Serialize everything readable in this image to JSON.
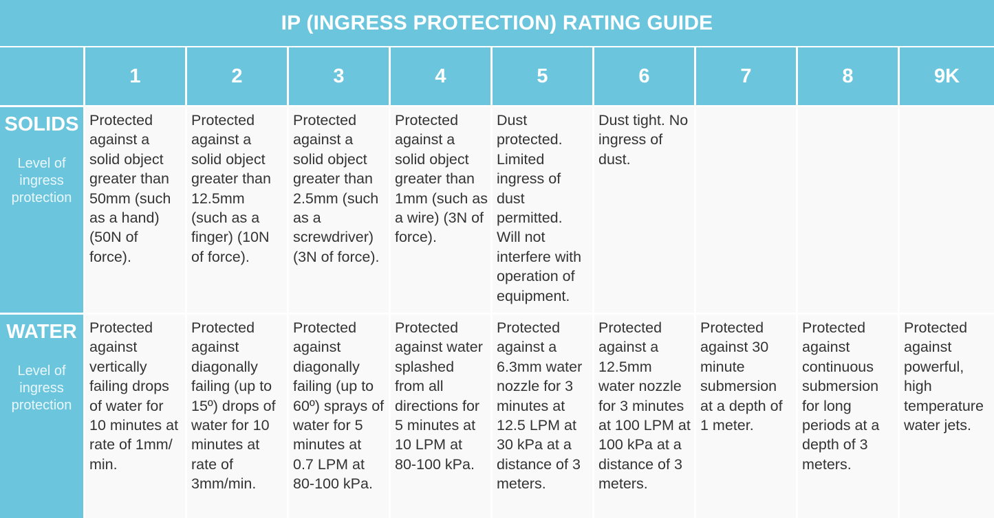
{
  "title": "IP (INGRESS PROTECTION) RATING GUIDE",
  "columns": [
    "1",
    "2",
    "3",
    "4",
    "5",
    "6",
    "7",
    "8",
    "9K"
  ],
  "colors": {
    "header_bg": "#6bc5dd",
    "header_text": "#ffffff",
    "cell_bg": "#f9f9f9",
    "cell_text": "#333333"
  },
  "rows": [
    {
      "label": "SOLIDS",
      "sublabel": "Level of ingress protection",
      "cells": [
        "Protected against a solid object greater than 50mm (such as a hand) (50N of force).",
        "Protected against a solid object greater than 12.5mm (such as a finger) (10N of force).",
        "Protected against a solid object greater than 2.5mm (such as a screwdriver) (3N of force).",
        "Protected against a solid object greater than 1mm (such as a wire) (3N of force).",
        "Dust protected. Limited ingress of dust permitted. Will not interfere with operation of equipment.",
        "Dust tight. No ingress of dust.",
        "",
        "",
        ""
      ]
    },
    {
      "label": "WATER",
      "sublabel": "Level of ingress protection",
      "cells": [
        "Protected against vertically failing drops of water for 10 minutes at rate of 1mm/ min.",
        "Protected against diagonally failing (up to 15º) drops of water for 10 minutes at rate of 3mm/min.",
        "Protected against diagonally failing (up to 60º) sprays of water for 5 minutes at 0.7 LPM at 80-100 kPa.",
        "Protected against water splashed from all directions for 5 minutes at 10 LPM at 80-100 kPa.",
        "Protected against a 6.3mm water nozzle for 3 minutes at 12.5 LPM at 30 kPa at a distance of 3 meters.",
        "Protected against a 12.5mm water nozzle for 3 minutes at 100 LPM at 100 kPa at a distance of 3 meters.",
        "Protected against 30 minute submersion at a depth of 1 meter.",
        "Protected against continuous submersion for long periods at a depth of 3 meters.",
        "Protected against powerful, high temperature water jets."
      ]
    }
  ]
}
